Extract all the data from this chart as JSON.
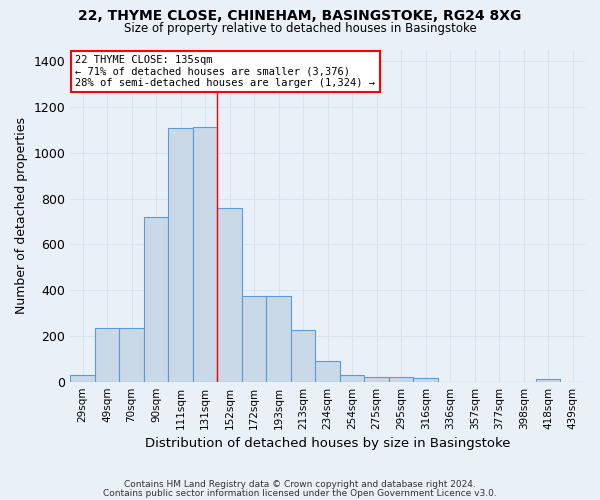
{
  "title": "22, THYME CLOSE, CHINEHAM, BASINGSTOKE, RG24 8XG",
  "subtitle": "Size of property relative to detached houses in Basingstoke",
  "xlabel": "Distribution of detached houses by size in Basingstoke",
  "ylabel": "Number of detached properties",
  "bar_color": "#c9d9e8",
  "bar_edge_color": "#5b9bd5",
  "background_color": "#eaf0f8",
  "grid_color": "#d8e4f0",
  "categories": [
    "29sqm",
    "49sqm",
    "70sqm",
    "90sqm",
    "111sqm",
    "131sqm",
    "152sqm",
    "172sqm",
    "193sqm",
    "213sqm",
    "234sqm",
    "254sqm",
    "275sqm",
    "295sqm",
    "316sqm",
    "336sqm",
    "357sqm",
    "377sqm",
    "398sqm",
    "418sqm",
    "439sqm"
  ],
  "values": [
    30,
    235,
    235,
    720,
    1110,
    1115,
    760,
    375,
    375,
    225,
    90,
    30,
    22,
    22,
    15,
    0,
    0,
    0,
    0,
    10,
    0
  ],
  "ylim": [
    0,
    1450
  ],
  "yticks": [
    0,
    200,
    400,
    600,
    800,
    1000,
    1200,
    1400
  ],
  "annotation_text": "22 THYME CLOSE: 135sqm\n← 71% of detached houses are smaller (3,376)\n28% of semi-detached houses are larger (1,324) →",
  "footer1": "Contains HM Land Registry data © Crown copyright and database right 2024.",
  "footer2": "Contains public sector information licensed under the Open Government Licence v3.0.",
  "figsize": [
    6.0,
    5.0
  ],
  "dpi": 100,
  "red_line_x": 5.5
}
